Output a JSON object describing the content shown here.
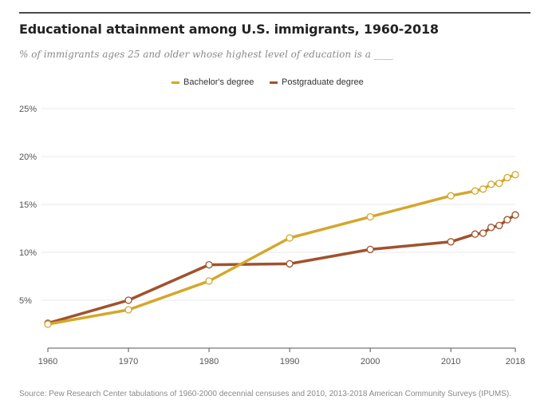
{
  "title": "Educational attainment among U.S. immigrants, 1960-2018",
  "subtitle": "% of immigrants ages 25 and older whose highest level of education is a ____",
  "source": "Source: Pew Research Center tabulations of 1960-2000 decennial censuses and 2010, 2013-2018 American Community Surveys (IPUMS).",
  "colors": {
    "bachelors": "#d4a72c",
    "postgraduate": "#a0522d",
    "grid": "#e8e8e8",
    "axis": "#555555",
    "tick_text": "#555555"
  },
  "chart_data": {
    "type": "line",
    "title": "Educational attainment among U.S. immigrants, 1960-2018",
    "xlabel": "",
    "ylabel": "",
    "xlim": [
      1960,
      2018
    ],
    "ylim": [
      0,
      25
    ],
    "x_ticks": [
      1960,
      1970,
      1980,
      1990,
      2000,
      2010,
      2018
    ],
    "x_tick_labels": [
      "1960",
      "1970",
      "1980",
      "1990",
      "2000",
      "2010",
      "2018"
    ],
    "y_ticks": [
      5,
      10,
      15,
      20,
      25
    ],
    "y_tick_labels": [
      "5%",
      "10%",
      "15%",
      "20%",
      "25%"
    ],
    "grid": true,
    "legend_position": "top-center",
    "x": [
      1960,
      1970,
      1980,
      1990,
      2000,
      2010,
      2013,
      2014,
      2015,
      2016,
      2017,
      2018
    ],
    "series": [
      {
        "name": "Bachelor's degree",
        "color": "#d4a72c",
        "values": [
          2.5,
          4.0,
          7.0,
          11.5,
          13.7,
          15.9,
          16.4,
          16.6,
          17.1,
          17.2,
          17.8,
          18.1
        ]
      },
      {
        "name": "Postgraduate degree",
        "color": "#a0522d",
        "values": [
          2.6,
          5.0,
          8.7,
          8.8,
          10.3,
          11.1,
          11.9,
          12.0,
          12.6,
          12.8,
          13.4,
          13.9
        ]
      }
    ]
  }
}
